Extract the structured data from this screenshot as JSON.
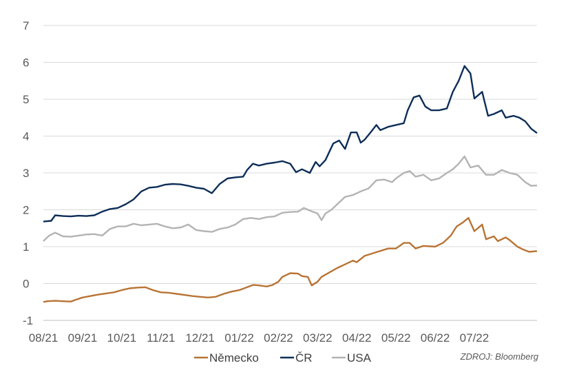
{
  "chart_data": {
    "type": "line",
    "title": "",
    "xlabel": "",
    "ylabel": "",
    "ylim": [
      -1,
      7
    ],
    "yticks": [
      "-1",
      "0",
      "1",
      "2",
      "3",
      "4",
      "5",
      "6",
      "7"
    ],
    "xticks": [
      "08/21",
      "09/21",
      "10/21",
      "11/21",
      "12/21",
      "01/22",
      "02/22",
      "03/22",
      "04/22",
      "05/22",
      "06/22",
      "07/22"
    ],
    "grid": true,
    "legend_position": "bottom",
    "source": "ZDROJ: Bloomberg",
    "series": [
      {
        "name": "Německo",
        "color": "#b87333",
        "values": [
          [
            0,
            -0.5
          ],
          [
            0.1,
            -0.48
          ],
          [
            0.3,
            -0.47
          ],
          [
            0.5,
            -0.48
          ],
          [
            0.7,
            -0.49
          ],
          [
            0.8,
            -0.45
          ],
          [
            1.0,
            -0.38
          ],
          [
            1.2,
            -0.34
          ],
          [
            1.4,
            -0.3
          ],
          [
            1.6,
            -0.27
          ],
          [
            1.8,
            -0.24
          ],
          [
            2.0,
            -0.18
          ],
          [
            2.2,
            -0.13
          ],
          [
            2.4,
            -0.11
          ],
          [
            2.6,
            -0.1
          ],
          [
            2.8,
            -0.18
          ],
          [
            3.0,
            -0.24
          ],
          [
            3.2,
            -0.25
          ],
          [
            3.4,
            -0.28
          ],
          [
            3.6,
            -0.31
          ],
          [
            3.8,
            -0.34
          ],
          [
            4.0,
            -0.36
          ],
          [
            4.2,
            -0.38
          ],
          [
            4.4,
            -0.36
          ],
          [
            4.6,
            -0.28
          ],
          [
            4.8,
            -0.22
          ],
          [
            5.0,
            -0.18
          ],
          [
            5.2,
            -0.1
          ],
          [
            5.35,
            -0.04
          ],
          [
            5.5,
            -0.05
          ],
          [
            5.7,
            -0.08
          ],
          [
            5.85,
            -0.04
          ],
          [
            6.0,
            0.05
          ],
          [
            6.1,
            0.18
          ],
          [
            6.3,
            0.28
          ],
          [
            6.5,
            0.27
          ],
          [
            6.6,
            0.2
          ],
          [
            6.75,
            0.18
          ],
          [
            6.85,
            -0.05
          ],
          [
            7.0,
            0.05
          ],
          [
            7.1,
            0.18
          ],
          [
            7.3,
            0.3
          ],
          [
            7.5,
            0.42
          ],
          [
            7.7,
            0.52
          ],
          [
            7.9,
            0.62
          ],
          [
            8.0,
            0.58
          ],
          [
            8.2,
            0.75
          ],
          [
            8.5,
            0.85
          ],
          [
            8.8,
            0.95
          ],
          [
            9.0,
            0.95
          ],
          [
            9.2,
            1.1
          ],
          [
            9.35,
            1.1
          ],
          [
            9.5,
            0.95
          ],
          [
            9.7,
            1.02
          ],
          [
            10.0,
            1.0
          ],
          [
            10.2,
            1.1
          ],
          [
            10.4,
            1.3
          ],
          [
            10.55,
            1.55
          ],
          [
            10.7,
            1.65
          ],
          [
            10.85,
            1.78
          ],
          [
            11.0,
            1.42
          ],
          [
            11.2,
            1.6
          ],
          [
            11.3,
            1.2
          ],
          [
            11.5,
            1.28
          ],
          [
            11.6,
            1.15
          ],
          [
            11.8,
            1.25
          ],
          [
            11.9,
            1.18
          ],
          [
            12.1,
            1.0
          ],
          [
            12.25,
            0.92
          ],
          [
            12.4,
            0.86
          ],
          [
            12.6,
            0.88
          ]
        ]
      },
      {
        "name": "ČR",
        "color": "#0c2d57",
        "values": [
          [
            0,
            1.68
          ],
          [
            0.2,
            1.7
          ],
          [
            0.3,
            1.85
          ],
          [
            0.5,
            1.83
          ],
          [
            0.7,
            1.82
          ],
          [
            0.9,
            1.84
          ],
          [
            1.1,
            1.83
          ],
          [
            1.3,
            1.85
          ],
          [
            1.5,
            1.95
          ],
          [
            1.7,
            2.02
          ],
          [
            1.9,
            2.05
          ],
          [
            2.1,
            2.15
          ],
          [
            2.3,
            2.28
          ],
          [
            2.5,
            2.5
          ],
          [
            2.7,
            2.6
          ],
          [
            2.9,
            2.62
          ],
          [
            3.1,
            2.68
          ],
          [
            3.3,
            2.7
          ],
          [
            3.5,
            2.69
          ],
          [
            3.7,
            2.65
          ],
          [
            3.9,
            2.6
          ],
          [
            4.1,
            2.57
          ],
          [
            4.3,
            2.45
          ],
          [
            4.5,
            2.7
          ],
          [
            4.7,
            2.85
          ],
          [
            4.9,
            2.88
          ],
          [
            5.1,
            2.9
          ],
          [
            5.2,
            3.08
          ],
          [
            5.35,
            3.25
          ],
          [
            5.5,
            3.2
          ],
          [
            5.7,
            3.25
          ],
          [
            5.9,
            3.28
          ],
          [
            6.1,
            3.32
          ],
          [
            6.3,
            3.25
          ],
          [
            6.45,
            3.02
          ],
          [
            6.6,
            3.1
          ],
          [
            6.8,
            3.0
          ],
          [
            6.95,
            3.3
          ],
          [
            7.05,
            3.18
          ],
          [
            7.2,
            3.35
          ],
          [
            7.4,
            3.8
          ],
          [
            7.55,
            3.88
          ],
          [
            7.7,
            3.65
          ],
          [
            7.85,
            4.1
          ],
          [
            8.0,
            4.1
          ],
          [
            8.1,
            3.82
          ],
          [
            8.2,
            3.9
          ],
          [
            8.35,
            4.1
          ],
          [
            8.5,
            4.3
          ],
          [
            8.6,
            4.16
          ],
          [
            8.8,
            4.25
          ],
          [
            9.0,
            4.3
          ],
          [
            9.2,
            4.35
          ],
          [
            9.3,
            4.7
          ],
          [
            9.45,
            5.05
          ],
          [
            9.6,
            5.1
          ],
          [
            9.75,
            4.8
          ],
          [
            9.9,
            4.7
          ],
          [
            10.1,
            4.7
          ],
          [
            10.3,
            4.75
          ],
          [
            10.45,
            5.2
          ],
          [
            10.6,
            5.5
          ],
          [
            10.75,
            5.9
          ],
          [
            10.9,
            5.7
          ],
          [
            11.0,
            5.02
          ],
          [
            11.2,
            5.2
          ],
          [
            11.35,
            4.55
          ],
          [
            11.5,
            4.6
          ],
          [
            11.7,
            4.7
          ],
          [
            11.8,
            4.5
          ],
          [
            12.0,
            4.55
          ],
          [
            12.15,
            4.5
          ],
          [
            12.3,
            4.4
          ],
          [
            12.45,
            4.2
          ],
          [
            12.6,
            4.08
          ]
        ]
      },
      {
        "name": "USA",
        "color": "#b3b3b3",
        "values": [
          [
            0,
            1.15
          ],
          [
            0.15,
            1.3
          ],
          [
            0.3,
            1.38
          ],
          [
            0.5,
            1.28
          ],
          [
            0.7,
            1.27
          ],
          [
            0.9,
            1.3
          ],
          [
            1.1,
            1.33
          ],
          [
            1.3,
            1.34
          ],
          [
            1.5,
            1.3
          ],
          [
            1.7,
            1.48
          ],
          [
            1.9,
            1.55
          ],
          [
            2.1,
            1.55
          ],
          [
            2.3,
            1.62
          ],
          [
            2.5,
            1.58
          ],
          [
            2.7,
            1.6
          ],
          [
            2.9,
            1.62
          ],
          [
            3.1,
            1.55
          ],
          [
            3.3,
            1.5
          ],
          [
            3.5,
            1.52
          ],
          [
            3.7,
            1.6
          ],
          [
            3.9,
            1.45
          ],
          [
            4.1,
            1.42
          ],
          [
            4.3,
            1.4
          ],
          [
            4.5,
            1.48
          ],
          [
            4.7,
            1.52
          ],
          [
            4.9,
            1.6
          ],
          [
            5.1,
            1.75
          ],
          [
            5.3,
            1.78
          ],
          [
            5.5,
            1.75
          ],
          [
            5.7,
            1.8
          ],
          [
            5.9,
            1.82
          ],
          [
            6.1,
            1.92
          ],
          [
            6.3,
            1.94
          ],
          [
            6.5,
            1.95
          ],
          [
            6.65,
            2.05
          ],
          [
            6.8,
            1.98
          ],
          [
            7.0,
            1.9
          ],
          [
            7.1,
            1.72
          ],
          [
            7.2,
            1.9
          ],
          [
            7.35,
            2.0
          ],
          [
            7.5,
            2.15
          ],
          [
            7.7,
            2.35
          ],
          [
            7.9,
            2.4
          ],
          [
            8.1,
            2.5
          ],
          [
            8.3,
            2.58
          ],
          [
            8.5,
            2.8
          ],
          [
            8.7,
            2.82
          ],
          [
            8.9,
            2.75
          ],
          [
            9.0,
            2.85
          ],
          [
            9.2,
            3.0
          ],
          [
            9.35,
            3.05
          ],
          [
            9.5,
            2.9
          ],
          [
            9.7,
            2.95
          ],
          [
            9.9,
            2.8
          ],
          [
            10.1,
            2.85
          ],
          [
            10.3,
            3.0
          ],
          [
            10.45,
            3.1
          ],
          [
            10.6,
            3.25
          ],
          [
            10.75,
            3.45
          ],
          [
            10.9,
            3.15
          ],
          [
            11.1,
            3.2
          ],
          [
            11.3,
            2.95
          ],
          [
            11.5,
            2.95
          ],
          [
            11.7,
            3.08
          ],
          [
            11.9,
            3.0
          ],
          [
            12.1,
            2.95
          ],
          [
            12.3,
            2.75
          ],
          [
            12.45,
            2.65
          ],
          [
            12.6,
            2.66
          ]
        ]
      }
    ]
  }
}
